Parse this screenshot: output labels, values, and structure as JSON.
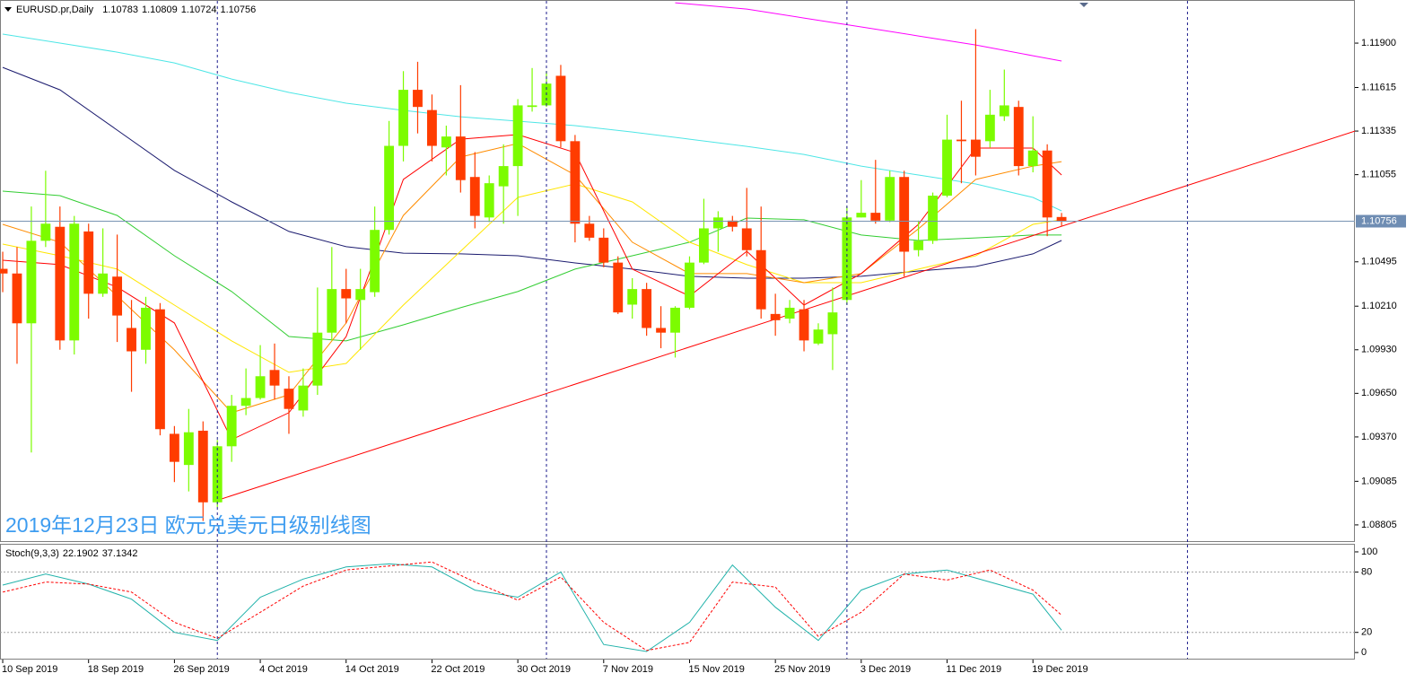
{
  "chart_data": [
    {
      "type": "candlestick",
      "title": "EURUSD.pr,Daily",
      "annotation": "2019年12月23日 欧元兑美元日级别线图",
      "categories": [
        "10 Sep 2019",
        null,
        null,
        null,
        null,
        null,
        "18 Sep 2019",
        null,
        null,
        null,
        null,
        null,
        "26 Sep 2019",
        null,
        null,
        null,
        null,
        null,
        "4 Oct 2019",
        null,
        null,
        null,
        null,
        null,
        "14 Oct 2019",
        null,
        null,
        null,
        null,
        null,
        "22 Oct 2019",
        null,
        null,
        null,
        null,
        null,
        "30 Oct 2019",
        null,
        null,
        null,
        null,
        null,
        "7 Nov 2019",
        null,
        null,
        null,
        null,
        null,
        "15 Nov 2019",
        null,
        null,
        null,
        null,
        null,
        "25 Nov 2019",
        null,
        null,
        null,
        null,
        null,
        "3 Dec 2019",
        null,
        null,
        null,
        null,
        null,
        "11 Dec 2019",
        null,
        null,
        null,
        null,
        null,
        "19 Dec 2019",
        null,
        null
      ],
      "open": [
        1.1045,
        1.1042,
        1.101,
        1.1063,
        1.1072,
        1.0999,
        1.1069,
        1.1029,
        1.104,
        1.1007,
        1.0993,
        1.1019,
        1.0939,
        1.0919,
        1.0941,
        1.0895,
        1.0931,
        1.0957,
        1.0962,
        1.098,
        1.0968,
        1.0954,
        1.097,
        1.1004,
        1.1032,
        1.1025,
        1.103,
        1.107,
        1.1124,
        1.116,
        1.1147,
        1.1123,
        1.113,
        1.1104,
        1.1078,
        1.1098,
        1.1111,
        1.1149,
        1.115,
        1.1169,
        1.1127,
        1.1074,
        1.1065,
        1.1049,
        1.1022,
        1.1032,
        1.1007,
        1.1004,
        1.102,
        1.1049,
        1.1071,
        1.1076,
        1.1071,
        1.1057,
        1.1016,
        1.1013,
        1.1019,
        1.0997,
        1.1003,
        1.1025,
        1.1078,
        1.1081,
        1.1076,
        1.1104,
        1.1057,
        1.1063,
        1.1092,
        1.1128,
        1.1128,
        1.1127,
        1.1143,
        1.1149,
        1.1111,
        1.1121,
        1.10783
      ],
      "high": [
        1.1056,
        1.1059,
        1.1085,
        1.1108,
        1.1085,
        1.1079,
        1.1074,
        1.1071,
        1.1067,
        1.1025,
        1.1027,
        1.1023,
        1.0944,
        1.0955,
        1.0947,
        1.0935,
        1.0964,
        1.0981,
        1.0996,
        1.0997,
        1.0976,
        1.0981,
        1.1033,
        1.1059,
        1.1045,
        1.1045,
        1.1085,
        1.114,
        1.1172,
        1.1178,
        1.1157,
        1.1137,
        1.1163,
        1.112,
        1.1105,
        1.1125,
        1.1154,
        1.1174,
        1.1172,
        1.1176,
        1.1131,
        1.1079,
        1.1071,
        1.1053,
        1.1039,
        1.1036,
        1.1021,
        1.1021,
        1.1053,
        1.109,
        1.1082,
        1.1079,
        1.1097,
        1.1085,
        1.1029,
        1.1025,
        1.1025,
        1.101,
        1.1033,
        1.1085,
        1.1102,
        1.1115,
        1.1108,
        1.1108,
        1.1076,
        1.1094,
        1.1144,
        1.1153,
        1.1199,
        1.116,
        1.1173,
        1.1153,
        1.1143,
        1.1125,
        1.10809
      ],
      "low": [
        1.103,
        1.0984,
        1.0927,
        1.1059,
        1.0993,
        1.099,
        1.1013,
        1.1027,
        1.0998,
        1.0966,
        1.0984,
        1.0938,
        1.0908,
        1.0902,
        1.0883,
        1.0892,
        1.0921,
        1.0951,
        1.0961,
        1.0961,
        1.0939,
        1.095,
        1.0964,
        1.0999,
        1.101,
        1.0993,
        1.1027,
        1.1067,
        1.1114,
        1.1132,
        1.1114,
        1.1105,
        1.1094,
        1.1071,
        1.1075,
        1.1074,
        1.1079,
        1.1146,
        1.1149,
        1.1123,
        1.1062,
        1.1063,
        1.1046,
        1.1016,
        1.1013,
        1.1002,
        1.0994,
        1.0988,
        1.1019,
        1.1048,
        1.1056,
        1.1069,
        1.1053,
        1.1013,
        1.1002,
        1.101,
        1.0992,
        1.0996,
        1.098,
        1.1022,
        1.1078,
        1.1074,
        1.1075,
        1.104,
        1.1053,
        1.1061,
        1.1091,
        1.11,
        1.1105,
        1.1123,
        1.114,
        1.1105,
        1.1107,
        1.1066,
        1.10724
      ],
      "close": [
        1.1042,
        1.101,
        1.1063,
        1.1074,
        1.0999,
        1.1074,
        1.1029,
        1.1042,
        1.1015,
        1.0992,
        1.102,
        1.0942,
        1.0921,
        1.094,
        1.0895,
        1.0931,
        1.0957,
        1.0962,
        1.0976,
        1.097,
        1.0955,
        1.097,
        1.1004,
        1.1032,
        1.1026,
        1.1032,
        1.107,
        1.1124,
        1.116,
        1.1149,
        1.1124,
        1.113,
        1.1102,
        1.1079,
        1.11,
        1.1111,
        1.115,
        1.115,
        1.1164,
        1.1127,
        1.1074,
        1.1065,
        1.1049,
        1.1017,
        1.1032,
        1.1007,
        1.1004,
        1.102,
        1.1049,
        1.1071,
        1.1078,
        1.1072,
        1.1057,
        1.1019,
        1.1012,
        1.102,
        1.0999,
        1.1006,
        1.1017,
        1.1078,
        1.1081,
        1.1076,
        1.1104,
        1.1056,
        1.1063,
        1.1092,
        1.1128,
        1.1127,
        1.1117,
        1.1144,
        1.115,
        1.1111,
        1.1121,
        1.1078,
        1.10756
      ],
      "up_color": "#7cfc00",
      "down_color": "#ff3c00",
      "series": [
        {
          "color": "#ff00ff",
          "x": [
            47,
            52,
            56,
            60,
            64,
            68,
            72,
            74
          ],
          "values": [
            1.12159,
            1.12119,
            1.12061,
            1.12004,
            1.11946,
            1.11888,
            1.11819,
            1.11785
          ]
        },
        {
          "color": "#1a1a6e",
          "x": [
            0,
            4,
            8,
            12,
            16,
            20,
            24,
            28,
            32,
            36,
            40,
            44,
            48,
            52,
            56,
            60,
            64,
            68,
            72,
            74
          ],
          "values": [
            1.11744,
            1.116,
            1.11341,
            1.11082,
            1.1088,
            1.1069,
            1.10592,
            1.10551,
            1.10546,
            1.10534,
            1.10488,
            1.10448,
            1.10402,
            1.1039,
            1.1039,
            1.10402,
            1.10436,
            1.10465,
            1.10546,
            1.10632
          ]
        },
        {
          "color": "#4ee6e6",
          "x": [
            0,
            4,
            8,
            12,
            16,
            20,
            24,
            28,
            32,
            36,
            40,
            44,
            48,
            52,
            56,
            60,
            64,
            68,
            72,
            74
          ],
          "values": [
            1.11958,
            1.119,
            1.11842,
            1.11773,
            1.11669,
            1.11583,
            1.11514,
            1.11468,
            1.11427,
            1.11399,
            1.1137,
            1.11329,
            1.11283,
            1.11237,
            1.11185,
            1.1111,
            1.11053,
            1.10995,
            1.10909,
            1.10822
          ]
        },
        {
          "color": "#32cd32",
          "x": [
            0,
            4,
            8,
            12,
            16,
            20,
            24,
            28,
            32,
            36,
            40,
            44,
            48,
            52,
            56,
            60,
            64,
            68,
            72,
            74
          ],
          "values": [
            1.10949,
            1.1092,
            1.10793,
            1.10534,
            1.10304,
            1.10015,
            1.09987,
            1.1009,
            1.102,
            1.10304,
            1.10448,
            1.10534,
            1.10621,
            1.10776,
            1.10765,
            1.10667,
            1.10632,
            1.10649,
            1.10667,
            1.10667
          ]
        },
        {
          "color": "#ffe600",
          "x": [
            0,
            4,
            8,
            12,
            16,
            20,
            24,
            28,
            32,
            36,
            40,
            44,
            48,
            52,
            56,
            60,
            64,
            68,
            72,
            74
          ],
          "values": [
            1.10609,
            1.10534,
            1.10448,
            1.10217,
            1.09987,
            1.09785,
            1.09842,
            1.10217,
            1.10563,
            1.10909,
            1.10995,
            1.1088,
            1.10621,
            1.10477,
            1.10361,
            1.10361,
            1.10448,
            1.10534,
            1.10736,
            1.10765
          ]
        },
        {
          "color": "#ff8c00",
          "x": [
            0,
            4,
            8,
            12,
            16,
            20,
            24,
            28,
            32,
            36,
            40,
            44,
            48,
            52,
            56,
            60,
            64,
            68,
            72,
            74
          ],
          "values": [
            1.10736,
            1.10621,
            1.10275,
            1.09929,
            1.09526,
            1.09641,
            1.10102,
            1.10793,
            1.11168,
            1.11255,
            1.11053,
            1.10621,
            1.10419,
            1.10419,
            1.10361,
            1.10419,
            1.10707,
            1.11024,
            1.1111,
            1.11139
          ]
        },
        {
          "color": "#ff0000",
          "x": [
            0,
            4,
            8,
            12,
            16,
            20,
            24,
            28,
            32,
            36,
            40,
            44,
            48,
            52,
            56,
            60,
            64,
            68,
            72,
            74
          ],
          "values": [
            1.10505,
            1.10477,
            1.10332,
            1.10102,
            1.09353,
            1.09526,
            1.10015,
            1.11024,
            1.11283,
            1.11312,
            1.11197,
            1.10448,
            1.10275,
            1.10563,
            1.10217,
            1.10419,
            1.10736,
            1.11226,
            1.11226,
            1.11053
          ]
        }
      ],
      "trendline": {
        "color": "#ff0000",
        "x": [
          14.9,
          94.5
        ],
        "values": [
          1.0896,
          1.11335
        ]
      },
      "separators": [
        15,
        38,
        59,
        82.8
      ],
      "xlim": [
        -0.19,
        94.5
      ],
      "ylim": [
        1.08695,
        1.12177
      ],
      "yticks": [
        {
          "value": 1.119,
          "label": "1.11900"
        },
        {
          "value": 1.11615,
          "label": "1.11615"
        },
        {
          "value": 1.11335,
          "label": "1.11335"
        },
        {
          "value": 1.11055,
          "label": "1.11055"
        },
        {
          "value": 1.10495,
          "label": "1.10495"
        },
        {
          "value": 1.1021,
          "label": "1.10210"
        },
        {
          "value": 1.0993,
          "label": "1.09930"
        },
        {
          "value": 1.0965,
          "label": "1.09650"
        },
        {
          "value": 1.0937,
          "label": "1.09370"
        },
        {
          "value": 1.09085,
          "label": "1.09085"
        },
        {
          "value": 1.08805,
          "label": "1.08805"
        }
      ]
    },
    {
      "type": "line",
      "title": "Stoch(9,3,3)",
      "x": [
        0,
        3,
        6,
        9,
        12,
        15,
        18,
        21,
        24,
        27,
        30,
        33,
        36,
        39,
        42,
        45,
        48,
        51,
        54,
        57,
        60,
        63,
        66,
        69,
        72,
        74
      ],
      "series": [
        {
          "color": "#20b2aa",
          "dash": false,
          "values": [
            67,
            78,
            68,
            53,
            20,
            12,
            55,
            73,
            85,
            88,
            85,
            62,
            55,
            80,
            8,
            1,
            30,
            87,
            45,
            12,
            62,
            78,
            82,
            70,
            58,
            22.1902
          ]
        },
        {
          "color": "#ff0000",
          "dash": true,
          "values": [
            60,
            70,
            68,
            60,
            30,
            14,
            40,
            66,
            82,
            86,
            90,
            70,
            52,
            75,
            30,
            2,
            10,
            70,
            65,
            16,
            40,
            78,
            72,
            82,
            62,
            37.1342
          ]
        }
      ],
      "levels": [
        80,
        20
      ],
      "xlim": [
        -0.19,
        94.5
      ],
      "ylim": [
        -7,
        108
      ],
      "yticks": [
        100,
        80,
        20,
        0
      ]
    }
  ]
}
